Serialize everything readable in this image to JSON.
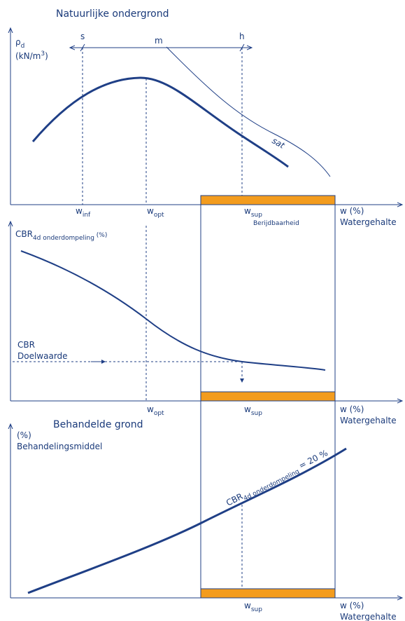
{
  "colors": {
    "line": "#1f3f86",
    "text": "#1a3a7a",
    "band": "#f39c1e"
  },
  "panel1": {
    "title": "Natuurlijke ondergrond",
    "y_label_main": "ρ",
    "y_label_sub": "d",
    "y_unit": "(kN/m",
    "y_unit_sup": "3",
    "y_unit_close": ")",
    "label_s": "s",
    "label_m": "m",
    "label_h": "h",
    "label_sat": "sat",
    "w": "w",
    "sub_inf": "inf",
    "sub_opt": "opt",
    "sub_sup": "sup",
    "berijdbaarheid": "Berijdbaarheid",
    "x_label": "w (%)",
    "x_label2": "Watergehalte"
  },
  "panel2": {
    "y_label": "CBR",
    "y_label_sub": "4d onderdompeling",
    "y_unit": " (%)",
    "cbr": "CBR",
    "doelwaarde": "Doelwaarde",
    "w": "w",
    "sub_opt": "opt",
    "sub_sup": "sup",
    "x_label": "w (%)",
    "x_label2": "Watergehalte"
  },
  "panel3": {
    "title": "Behandelde grond",
    "y_unit": "(%)",
    "y_label": "Behandelingsmiddel",
    "curve_label": "CBR",
    "curve_label_sub": "4d onderdompeling",
    "curve_label_val": " = 20 %",
    "w": "w",
    "sub_sup": "sup",
    "x_label": "w (%)",
    "x_label2": "Watergehalte"
  }
}
